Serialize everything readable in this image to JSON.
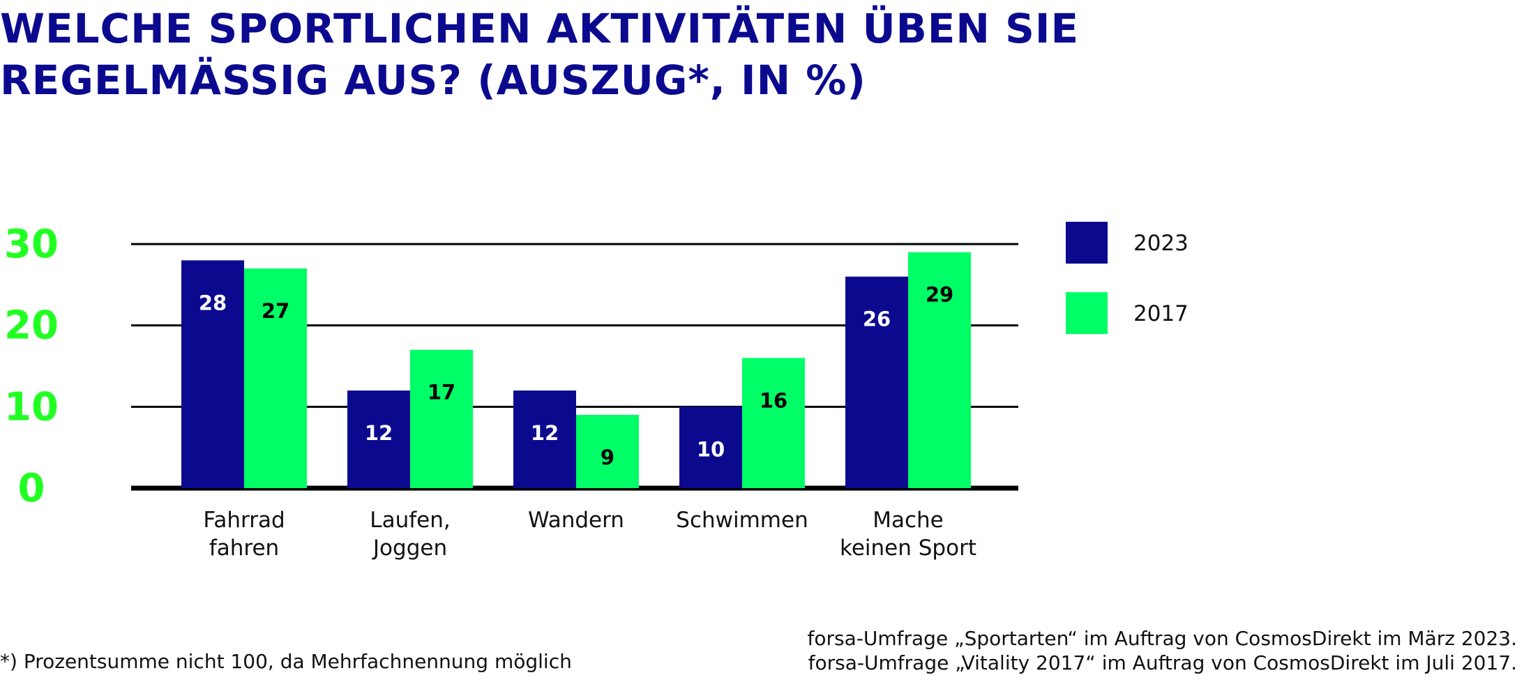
{
  "title_lines": [
    "WELCHE SPORTLICHEN AKTIVITÄTEN ÜBEN SIE",
    "REGELMÄSSIG AUS? (AUSZUG*, IN %)"
  ],
  "footnote": "*) Prozentsumme nicht 100, da Mehrfachnennung möglich",
  "sources": [
    "forsa-Umfrage „Sportarten“ im Auftrag von CosmosDirekt im März 2023.",
    "forsa-Umfrage „Vitality 2017“ im Auftrag von CosmosDirekt im Juli 2017."
  ],
  "colors": {
    "title": "#0b0a8f",
    "series_2023": "#0b0a8f",
    "series_2017": "#00ff66",
    "axis_ticks": "#22ff22",
    "gridline": "#000000"
  },
  "chart_data": {
    "type": "bar",
    "categories": [
      [
        "Fahrrad",
        "fahren"
      ],
      [
        "Laufen,",
        "Joggen"
      ],
      [
        "Wandern"
      ],
      [
        "Schwimmen"
      ],
      [
        "Mache",
        "keinen Sport"
      ]
    ],
    "series": [
      {
        "name": "2023",
        "values": [
          28,
          12,
          12,
          10,
          26
        ]
      },
      {
        "name": "2017",
        "values": [
          27,
          17,
          9,
          16,
          29
        ]
      }
    ],
    "ylim": [
      0,
      30
    ],
    "yticks": [
      0,
      10,
      20,
      30
    ],
    "grid": true,
    "legend": "right",
    "data_labels": true
  }
}
